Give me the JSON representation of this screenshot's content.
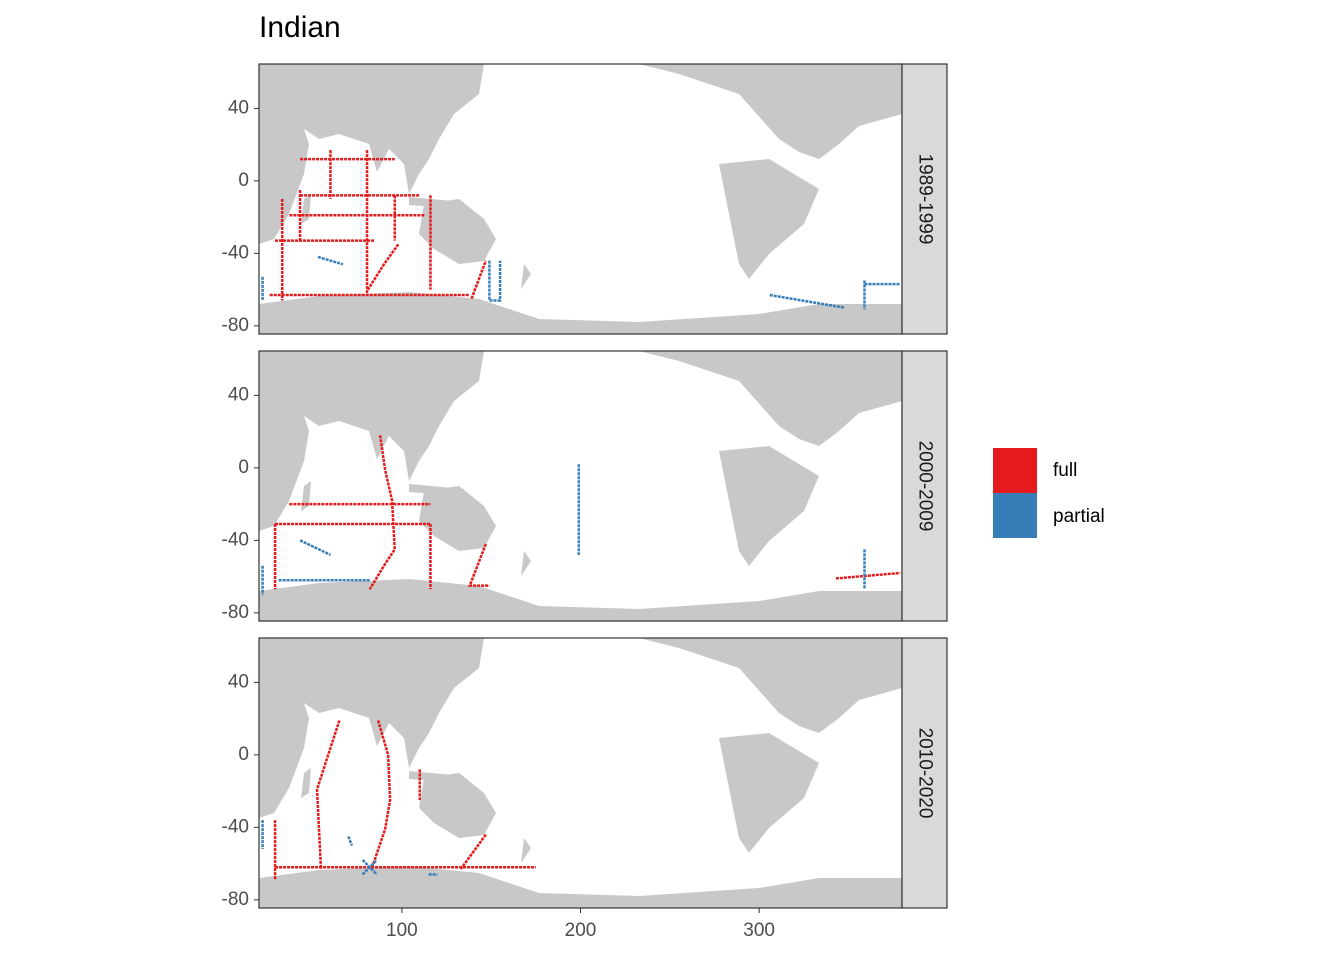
{
  "chart_data": {
    "type": "map",
    "title": "Indian",
    "facets": [
      "1989-1999",
      "2000-2009",
      "2010-2020"
    ],
    "xlim": [
      20,
      380
    ],
    "xticks": [
      100,
      200,
      300
    ],
    "ylim": [
      -84.5,
      64.5
    ],
    "yticks": [
      40,
      0,
      -40,
      -80
    ],
    "series": [
      {
        "name": "full",
        "color": "#e41a1c",
        "tracks": [
          [
            {
              "x": [
                80.5,
                80.5
              ],
              "y": [
                17,
                -63
              ]
            },
            {
              "x": [
                37,
                113
              ],
              "y": [
                -19,
                -19
              ]
            },
            {
              "x": [
                43,
                110
              ],
              "y": [
                -8,
                -8
              ]
            },
            {
              "x": [
                29,
                85
              ],
              "y": [
                -33,
                -33
              ]
            },
            {
              "x": [
                26,
                138
              ],
              "y": [
                -63,
                -63
              ]
            },
            {
              "x": [
                116,
                116
              ],
              "y": [
                -8,
                -60
              ]
            },
            {
              "x": [
                96,
                96
              ],
              "y": [
                -8,
                -33
              ]
            },
            {
              "x": [
                98,
                90,
                81
              ],
              "y": [
                -35,
                -46,
                -60
              ]
            },
            {
              "x": [
                33,
                33
              ],
              "y": [
                -10,
                -66
              ]
            },
            {
              "x": [
                43,
                43
              ],
              "y": [
                -5,
                -33
              ]
            },
            {
              "x": [
                60,
                60
              ],
              "y": [
                17,
                -10
              ]
            },
            {
              "x": [
                43,
                96
              ],
              "y": [
                12,
                12
              ]
            },
            {
              "x": [
                139,
                147
              ],
              "y": [
                -65,
                -44
              ]
            }
          ],
          [
            {
              "x": [
                87.8,
                90.6,
                94.5,
                96,
                90.6,
                82
              ],
              "y": [
                18,
                -1,
                -18,
                -45,
                -53,
                -67
              ]
            },
            {
              "x": [
                29,
                116
              ],
              "y": [
                -31,
                -31
              ]
            },
            {
              "x": [
                37,
                116
              ],
              "y": [
                -20,
                -20
              ]
            },
            {
              "x": [
                29,
                29
              ],
              "y": [
                -31,
                -67
              ]
            },
            {
              "x": [
                116,
                116
              ],
              "y": [
                -31,
                -67
              ]
            },
            {
              "x": [
                147,
                138,
                149
              ],
              "y": [
                -42,
                -65,
                -65
              ]
            },
            {
              "x": [
                343,
                379
              ],
              "y": [
                -61,
                -58
              ]
            }
          ],
          [
            {
              "x": [
                86.7,
                92.3,
                93.4,
                90.6,
                83
              ],
              "y": [
                19,
                0,
                -25,
                -41,
                -63
              ]
            },
            {
              "x": [
                65,
                52.5,
                54.7
              ],
              "y": [
                19,
                -19,
                -63
              ]
            },
            {
              "x": [
                29,
                175
              ],
              "y": [
                -62,
                -62
              ]
            },
            {
              "x": [
                29,
                29
              ],
              "y": [
                -36,
                -69
              ]
            },
            {
              "x": [
                110,
                110
              ],
              "y": [
                -8,
                -25
              ]
            },
            {
              "x": [
                147,
                133
              ],
              "y": [
                -44,
                -63
              ]
            }
          ]
        ]
      },
      {
        "name": "partial",
        "color": "#377eb8",
        "tracks": [
          [
            {
              "x": [
                149,
                149,
                155,
                155
              ],
              "y": [
                -44,
                -66,
                -66,
                -44
              ]
            },
            {
              "x": [
                306,
                348
              ],
              "y": [
                -63,
                -70
              ]
            },
            {
              "x": [
                359,
                359
              ],
              "y": [
                -55,
                -71
              ]
            },
            {
              "x": [
                359,
                379
              ],
              "y": [
                -57,
                -57
              ]
            },
            {
              "x": [
                53,
                67
              ],
              "y": [
                -42,
                -46
              ]
            },
            {
              "x": [
                22,
                22
              ],
              "y": [
                -53,
                -66
              ]
            }
          ],
          [
            {
              "x": [
                31,
                82
              ],
              "y": [
                -62,
                -62
              ]
            },
            {
              "x": [
                43,
                60
              ],
              "y": [
                -40,
                -48
              ]
            },
            {
              "x": [
                199,
                199
              ],
              "y": [
                2,
                -48
              ]
            },
            {
              "x": [
                359,
                359
              ],
              "y": [
                -45,
                -67
              ]
            },
            {
              "x": [
                22,
                22
              ],
              "y": [
                -54,
                -70
              ]
            }
          ],
          [
            {
              "x": [
                78,
                86
              ],
              "y": [
                -58,
                -66
              ]
            },
            {
              "x": [
                78,
                86
              ],
              "y": [
                -66,
                -58
              ]
            },
            {
              "x": [
                70,
                72
              ],
              "y": [
                -45,
                -50
              ]
            },
            {
              "x": [
                22,
                22
              ],
              "y": [
                -36,
                -52
              ]
            },
            {
              "x": [
                115,
                120
              ],
              "y": [
                -66,
                -66
              ]
            }
          ]
        ]
      }
    ]
  }
}
